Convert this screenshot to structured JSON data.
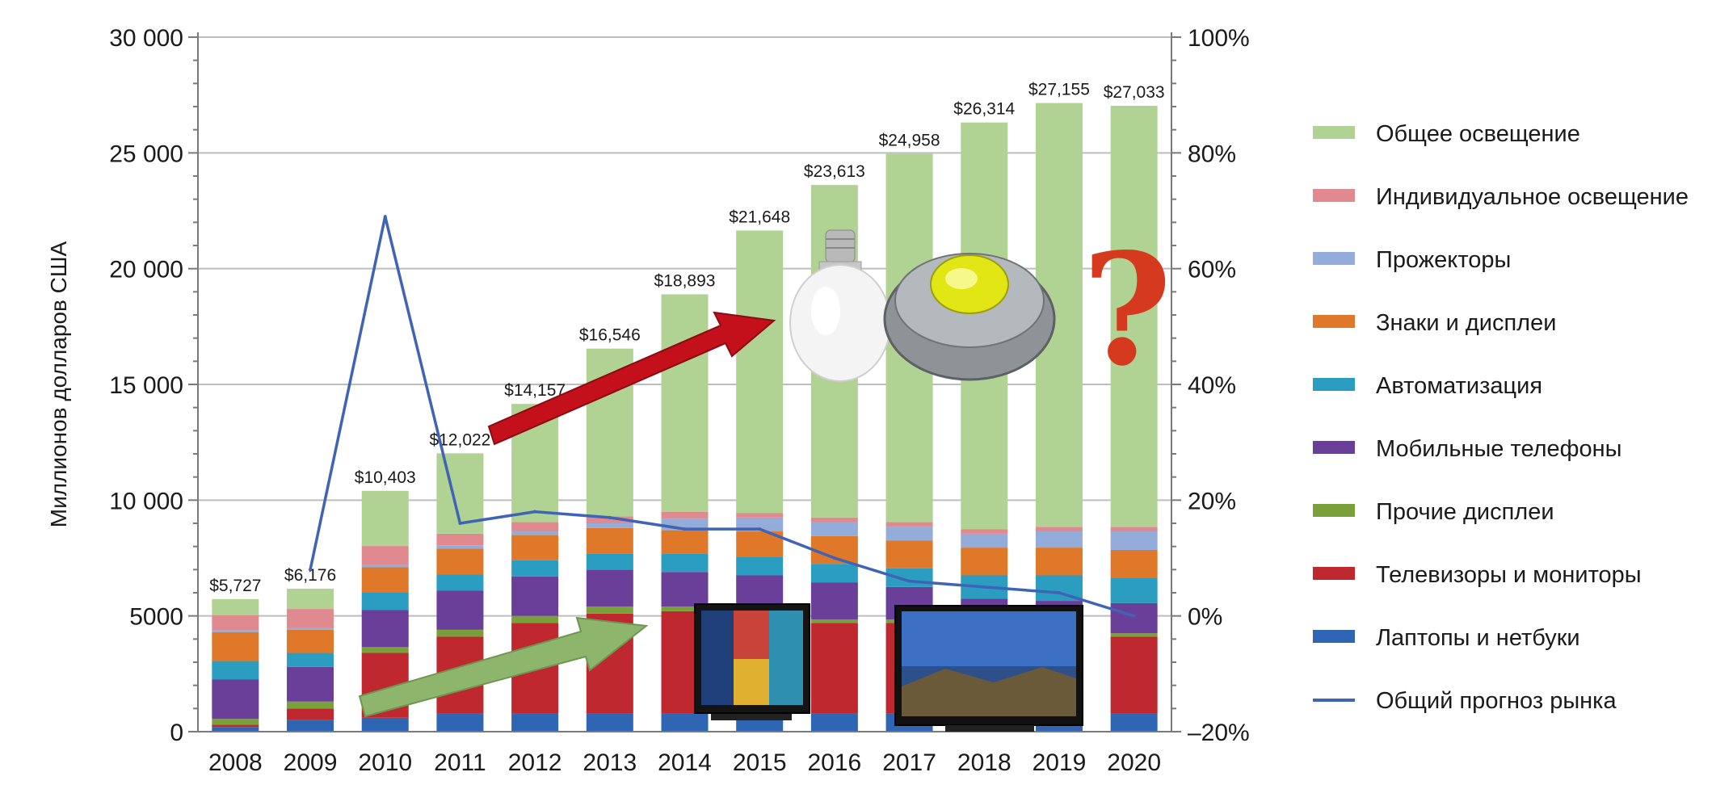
{
  "chart_data": {
    "type": "bar",
    "stacked": true,
    "ylabel": "Миллионов долларов США",
    "ylim": [
      0,
      30000
    ],
    "y_ticks": [
      "0",
      "5000",
      "10 000",
      "15 000",
      "20 000",
      "25 000",
      "30 000"
    ],
    "y2lim": [
      -20,
      100
    ],
    "y2_ticks": [
      "–20%",
      "0%",
      "20%",
      "40%",
      "60%",
      "80%",
      "100%"
    ],
    "grid": true,
    "legend_position": "right",
    "categories": [
      "2008",
      "2009",
      "2010",
      "2011",
      "2012",
      "2013",
      "2014",
      "2015",
      "2016",
      "2017",
      "2018",
      "2019",
      "2020"
    ],
    "total_labels": [
      "$5,727",
      "$6,176",
      "$10,403",
      "$12,022",
      "$14,157",
      "$16,546",
      "$18,893",
      "$21,648",
      "$23,613",
      "$24,958",
      "$26,314",
      "$27,155",
      "$27,033"
    ],
    "series": [
      {
        "name": "Лаптопы и нетбуки",
        "color": "#2f66b3",
        "values": [
          200,
          500,
          600,
          800,
          800,
          800,
          800,
          800,
          800,
          800,
          800,
          800,
          800
        ]
      },
      {
        "name": "Телевизоры и мониторы",
        "color": "#c0282f",
        "values": [
          100,
          500,
          2800,
          3300,
          3900,
          4300,
          4400,
          4300,
          3900,
          3900,
          3500,
          3400,
          3300
        ]
      },
      {
        "name": "Прочие дисплеи",
        "color": "#7aa03a",
        "values": [
          250,
          300,
          250,
          300,
          300,
          300,
          200,
          150,
          150,
          150,
          150,
          150,
          150
        ]
      },
      {
        "name": "Мобильные телефоны",
        "color": "#6a3f9a",
        "values": [
          1700,
          1500,
          1600,
          1700,
          1700,
          1600,
          1500,
          1500,
          1600,
          1400,
          1300,
          1300,
          1300
        ]
      },
      {
        "name": "Автоматизация",
        "color": "#2a9dc0",
        "values": [
          800,
          600,
          750,
          700,
          700,
          700,
          800,
          800,
          800,
          800,
          1000,
          1100,
          1100
        ]
      },
      {
        "name": "Знаки и дисплеи",
        "color": "#e0782a",
        "values": [
          1250,
          1000,
          1100,
          1100,
          1100,
          1100,
          1000,
          1100,
          1200,
          1200,
          1200,
          1200,
          1200
        ]
      },
      {
        "name": "Прожекторы",
        "color": "#93acd9",
        "values": [
          80,
          100,
          120,
          150,
          150,
          200,
          500,
          600,
          600,
          600,
          600,
          700,
          800
        ]
      },
      {
        "name": "Индивидуальное освещение",
        "color": "#e08a90",
        "values": [
          650,
          800,
          800,
          500,
          400,
          300,
          300,
          200,
          200,
          200,
          200,
          200,
          200
        ]
      },
      {
        "name": "Общее освещение",
        "color": "#b0d292",
        "values": [
          697,
          876,
          2383,
          3472,
          5107,
          7246,
          9393,
          12198,
          14363,
          15908,
          17564,
          18305,
          18183
        ]
      }
    ],
    "line_series": {
      "name": "Общий прогноз рынка",
      "color": "#3f64b6",
      "axis": "secondary",
      "values": [
        null,
        8,
        69,
        16,
        18,
        17,
        15,
        15,
        10,
        6,
        5,
        4,
        0
      ]
    }
  }
}
